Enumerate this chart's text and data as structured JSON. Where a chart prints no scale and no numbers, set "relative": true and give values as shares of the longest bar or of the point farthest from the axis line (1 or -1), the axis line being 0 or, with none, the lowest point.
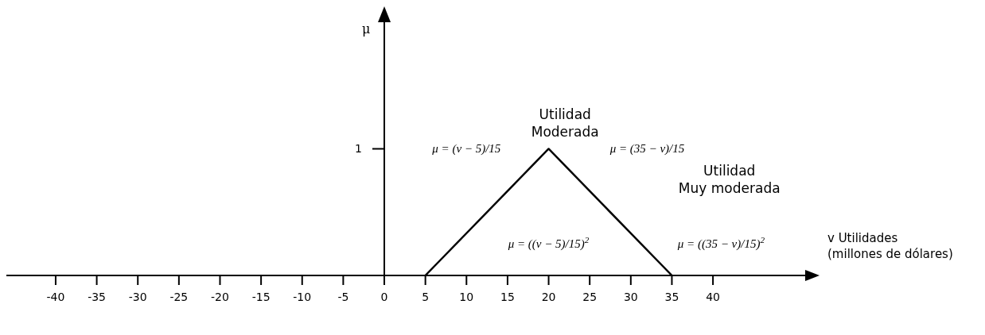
{
  "chart_data": {
    "type": "line",
    "relative": true,
    "xlabel": "v Utilidades\n(millones de dólares)",
    "x": [
      5,
      20,
      35
    ],
    "series": [
      {
        "color": "#000000",
        "values": [
          0,
          1,
          0
        ]
      }
    ],
    "xlim": [
      -46,
      52
    ],
    "xticks": [
      -40,
      -35,
      -30,
      -25,
      -20,
      -15,
      -10,
      -5,
      0,
      5,
      10,
      15,
      20,
      25,
      30,
      35,
      40
    ],
    "marker": "none",
    "line_style": "solid",
    "annotations": [
      "1",
      "Utilidad\nModerada",
      "μ = (v − 5)/15",
      "μ = (35 − v)/15",
      "Utilidad\nMuy moderada",
      "μ = ((v − 5)/15)$^{2}$",
      "μ = ((35 − v)/15)$^{2}$",
      "μ"
    ]
  }
}
